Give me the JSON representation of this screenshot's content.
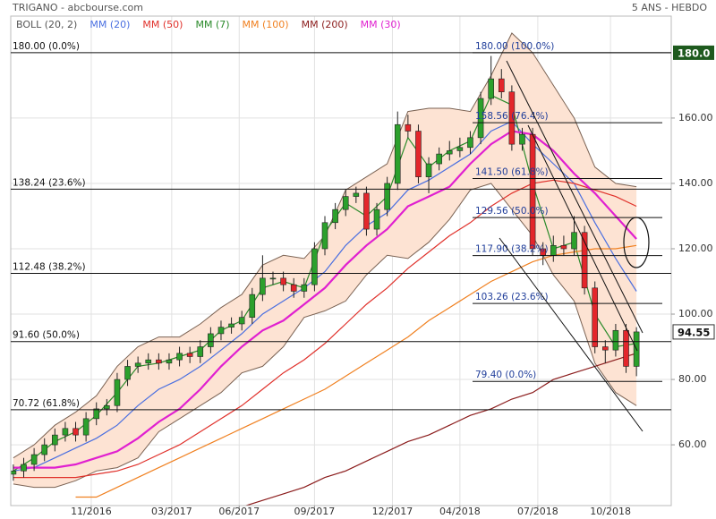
{
  "chart_data": {
    "type": "candlestick",
    "title": "TRIGANO - abcbourse.com",
    "subtitle": "5 ANS - HEBDO",
    "xlim": [
      -0.5,
      126.7
    ],
    "ylim": [
      41.4,
      191.2
    ],
    "yticks": [
      {
        "value": 60,
        "label": "60.00"
      },
      {
        "value": 80,
        "label": "80.00"
      },
      {
        "value": 100,
        "label": "100.00"
      },
      {
        "value": 120,
        "label": "120.00"
      },
      {
        "value": 140,
        "label": "140.00"
      },
      {
        "value": 160,
        "label": "160.00"
      }
    ],
    "xticks": [
      {
        "value": 15,
        "label": "11/2016"
      },
      {
        "value": 30.5,
        "label": "03/2017"
      },
      {
        "value": 43.5,
        "label": "06/2017"
      },
      {
        "value": 58,
        "label": "09/2017"
      },
      {
        "value": 73,
        "label": "12/2017"
      },
      {
        "value": 86,
        "label": "04/2018"
      },
      {
        "value": 101,
        "label": "07/2018"
      },
      {
        "value": 115,
        "label": "10/2018"
      }
    ],
    "grid": true,
    "up_color": "#2ca02c",
    "down_color": "#e3262b",
    "candles": {
      "x": [
        0,
        2,
        4,
        6,
        8,
        10,
        12,
        14,
        16,
        18,
        20,
        22,
        24,
        26,
        28,
        30,
        32,
        34,
        36,
        38,
        40,
        42,
        44,
        46,
        48,
        50,
        52,
        54,
        56,
        58,
        60,
        62,
        64,
        66,
        68,
        70,
        72,
        74,
        76,
        78,
        80,
        82,
        84,
        86,
        88,
        90,
        92,
        94,
        96,
        98,
        100,
        102,
        104,
        106,
        108,
        110,
        112,
        114,
        116,
        118,
        120
      ],
      "open": [
        51,
        52,
        54,
        57,
        60,
        63,
        65,
        63,
        68,
        71,
        72,
        80,
        84,
        85,
        86,
        85,
        86,
        88,
        87,
        90,
        94,
        96,
        97,
        99,
        106,
        111,
        111,
        109,
        107,
        109,
        120,
        128,
        132,
        136,
        137,
        126,
        132,
        140,
        158,
        156,
        142,
        146,
        149,
        150,
        151,
        154,
        166,
        172,
        168,
        152,
        155,
        120,
        118,
        121,
        120,
        125,
        108,
        90,
        89,
        95,
        84
      ],
      "high": [
        54,
        56,
        59,
        62,
        65,
        67,
        67,
        70,
        73,
        74,
        82,
        86,
        87,
        88,
        88,
        88,
        90,
        90,
        92,
        96,
        98,
        99,
        101,
        108,
        118,
        113,
        113,
        111,
        111,
        122,
        130,
        134,
        138,
        139,
        139,
        134,
        142,
        162,
        161,
        158,
        148,
        151,
        153,
        154,
        156,
        168,
        179,
        175,
        170,
        157,
        157,
        122,
        124,
        124,
        130,
        127,
        110,
        92,
        97,
        97,
        96
      ],
      "low": [
        49,
        50,
        52,
        55,
        58,
        61,
        61,
        61,
        66,
        69,
        70,
        78,
        82,
        83,
        83,
        83,
        84,
        85,
        85,
        88,
        92,
        94,
        95,
        97,
        104,
        109,
        107,
        105,
        105,
        107,
        118,
        126,
        130,
        134,
        124,
        124,
        130,
        138,
        154,
        140,
        137,
        144,
        147,
        148,
        149,
        152,
        164,
        166,
        150,
        150,
        118,
        115,
        116,
        118,
        118,
        106,
        88,
        85,
        87,
        82,
        81
      ],
      "close": [
        52,
        54,
        57,
        60,
        63,
        65,
        63,
        68,
        71,
        72,
        80,
        84,
        85,
        86,
        85,
        86,
        88,
        87,
        90,
        94,
        96,
        97,
        99,
        106,
        111,
        111,
        109,
        107,
        109,
        120,
        128,
        132,
        136,
        137,
        126,
        132,
        140,
        158,
        156,
        142,
        146,
        149,
        150,
        151,
        154,
        166,
        172,
        168,
        152,
        155,
        120,
        118,
        121,
        120,
        125,
        108,
        90,
        89,
        95,
        84,
        94.55
      ]
    },
    "indicator_x": [
      0,
      4,
      8,
      12,
      16,
      20,
      24,
      28,
      32,
      36,
      40,
      44,
      48,
      52,
      56,
      60,
      64,
      68,
      72,
      76,
      80,
      84,
      88,
      92,
      96,
      100,
      104,
      108,
      112,
      116,
      120
    ],
    "bollinger": {
      "name": "BOLL (20, 2)",
      "color": "#7a6253",
      "fill": "#fde3d3",
      "upper": [
        56,
        60,
        66,
        70,
        75,
        84,
        90,
        93,
        93,
        97,
        102,
        106,
        115,
        118,
        117,
        124,
        138,
        142,
        146,
        162,
        163,
        163,
        162,
        173,
        186,
        180,
        170,
        160,
        145,
        140,
        139
      ],
      "lower": [
        48,
        47,
        47,
        49,
        52,
        53,
        56,
        64,
        68,
        72,
        76,
        82,
        84,
        90,
        99,
        101,
        104,
        112,
        118,
        117,
        122,
        129,
        138,
        140,
        132,
        124,
        112,
        104,
        85,
        76,
        72
      ]
    },
    "series": [
      {
        "name": "MM (20)",
        "color": "#4a6fe0",
        "values": [
          52,
          53,
          56,
          59,
          62,
          66,
          72,
          77,
          80,
          84,
          89,
          94,
          100,
          104,
          108,
          113,
          121,
          127,
          131,
          138,
          141,
          145,
          149,
          156,
          159,
          152,
          146,
          140,
          128,
          117,
          107
        ]
      },
      {
        "name": "MM (50)",
        "color": "#e0302a",
        "values": [
          50,
          50,
          50,
          50,
          51,
          52,
          54,
          57,
          60,
          64,
          68,
          72,
          77,
          82,
          86,
          91,
          97,
          103,
          108,
          114,
          119,
          124,
          128,
          133,
          137,
          140,
          141,
          140,
          138,
          136,
          133
        ]
      },
      {
        "name": "MM (7)",
        "color": "#2a8a2a",
        "values": [
          52,
          56,
          61,
          64,
          69,
          76,
          84,
          85,
          87,
          89,
          95,
          98,
          108,
          110,
          108,
          125,
          134,
          130,
          136,
          154,
          145,
          150,
          153,
          167,
          164,
          140,
          120,
          122,
          100,
          90,
          91
        ]
      },
      {
        "name": "MM (100)",
        "color": "#f08020",
        "values": [
          null,
          null,
          null,
          44,
          44,
          47,
          50,
          53,
          56,
          59,
          62,
          65,
          68,
          71,
          74,
          77,
          81,
          85,
          89,
          93,
          98,
          102,
          106,
          110,
          113,
          116,
          118,
          119,
          120,
          120,
          121
        ]
      },
      {
        "name": "MM (200)",
        "color": "#8b1c1c",
        "values": [
          null,
          null,
          null,
          null,
          null,
          null,
          null,
          null,
          null,
          null,
          39,
          41,
          43,
          45,
          47,
          50,
          52,
          55,
          58,
          61,
          63,
          66,
          69,
          71,
          74,
          76,
          80,
          82,
          84,
          86,
          88
        ]
      },
      {
        "name": "MM (30)",
        "color": "#e020d0",
        "values": [
          53,
          53,
          53,
          54,
          56,
          58,
          62,
          67,
          71,
          77,
          84,
          90,
          95,
          98,
          103,
          108,
          115,
          121,
          126,
          133,
          136,
          139,
          146,
          152,
          156,
          155,
          150,
          143,
          137,
          130,
          123
        ]
      }
    ],
    "fib_left": [
      {
        "value": 180,
        "label": "180.00  (0.0%)"
      },
      {
        "value": 138.24,
        "label": "138.24  (23.6%)"
      },
      {
        "value": 112.48,
        "label": "112.48  (38.2%)"
      },
      {
        "value": 91.6,
        "label": "91.60  (50.0%)"
      },
      {
        "value": 70.72,
        "label": "70.72  (61.8%)"
      }
    ],
    "fib_right": [
      {
        "value": 180,
        "label": "180.00  (100.0%)"
      },
      {
        "value": 158.56,
        "label": "158.56  (76.4%)"
      },
      {
        "value": 141.5,
        "label": "141.50  (61.8%)"
      },
      {
        "value": 129.56,
        "label": "129.56  (50.0%)"
      },
      {
        "value": 117.9,
        "label": "117.90  (38.2%)"
      },
      {
        "value": 103.26,
        "label": "103.26  (23.6%)"
      },
      {
        "value": 79.4,
        "label": "79.40  (0.0%)"
      }
    ],
    "high_tag": {
      "value": 180,
      "label": "180.0"
    },
    "last_tag": 94.55
  }
}
